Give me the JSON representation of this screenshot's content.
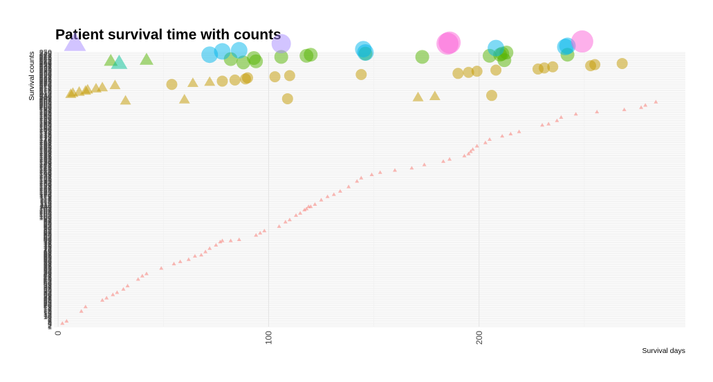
{
  "chart_data": {
    "type": "scatter",
    "title": "Patient survival time with counts",
    "xlabel": "Survival days",
    "ylabel": "Survival counts",
    "xlim": [
      -2,
      298
    ],
    "x_ticks": [
      0,
      100,
      200
    ],
    "y_axis": "categorical",
    "y_categories_count": 250,
    "grid": true,
    "legend": "none",
    "colors": {
      "g1": "#F8766D",
      "g2": "#C49A00",
      "g3": "#53B400",
      "g4": "#00C094",
      "g5": "#00B6EB",
      "g6": "#A58AFF",
      "g7": "#FB61D7"
    },
    "series": [
      {
        "group": "g1",
        "shape": "triangle",
        "size": 3,
        "points": [
          [
            2,
            4
          ],
          [
            4,
            6
          ],
          [
            11,
            15
          ],
          [
            13,
            19
          ],
          [
            21,
            25
          ],
          [
            23,
            27
          ],
          [
            26,
            30
          ],
          [
            28,
            32
          ],
          [
            31,
            35
          ],
          [
            33,
            38
          ],
          [
            38,
            44
          ],
          [
            40,
            47
          ],
          [
            42,
            49
          ],
          [
            49,
            54
          ],
          [
            55,
            58
          ],
          [
            58,
            60
          ],
          [
            62,
            62
          ],
          [
            65,
            65
          ],
          [
            68,
            66
          ],
          [
            70,
            69
          ],
          [
            72,
            72
          ],
          [
            75,
            75
          ],
          [
            77,
            78
          ],
          [
            78,
            79
          ],
          [
            82,
            79
          ],
          [
            86,
            80
          ],
          [
            94,
            84
          ],
          [
            96,
            86
          ],
          [
            98,
            88
          ],
          [
            105,
            92
          ],
          [
            108,
            96
          ],
          [
            110,
            98
          ],
          [
            113,
            102
          ],
          [
            115,
            104
          ],
          [
            117,
            107
          ],
          [
            118,
            108
          ],
          [
            119,
            110
          ],
          [
            120,
            110
          ],
          [
            122,
            112
          ],
          [
            125,
            116
          ],
          [
            128,
            119
          ],
          [
            131,
            121
          ],
          [
            134,
            124
          ],
          [
            138,
            128
          ],
          [
            142,
            133
          ],
          [
            144,
            136
          ],
          [
            149,
            139
          ],
          [
            153,
            141
          ],
          [
            160,
            143
          ],
          [
            168,
            145
          ],
          [
            174,
            148
          ],
          [
            183,
            151
          ],
          [
            186,
            153
          ],
          [
            193,
            156
          ],
          [
            195,
            158
          ],
          [
            196,
            160
          ],
          [
            197,
            162
          ],
          [
            199,
            165
          ],
          [
            203,
            168
          ],
          [
            205,
            171
          ],
          [
            211,
            174
          ],
          [
            215,
            176
          ],
          [
            219,
            178
          ],
          [
            230,
            184
          ],
          [
            233,
            185
          ],
          [
            237,
            188
          ],
          [
            239,
            191
          ],
          [
            246,
            194
          ],
          [
            256,
            196
          ],
          [
            269,
            198
          ],
          [
            277,
            200
          ],
          [
            279,
            202
          ],
          [
            284,
            205
          ]
        ]
      },
      {
        "group": "g2",
        "shape": "triangle",
        "size": 8,
        "points": [
          [
            6,
            212
          ],
          [
            7,
            213
          ],
          [
            10,
            214
          ],
          [
            13,
            215
          ],
          [
            14,
            216
          ],
          [
            18,
            217
          ],
          [
            21,
            218
          ],
          [
            27,
            220
          ],
          [
            32,
            206
          ],
          [
            60,
            207
          ],
          [
            64,
            222
          ],
          [
            72,
            223
          ],
          [
            171,
            209
          ],
          [
            179,
            210
          ]
        ]
      },
      {
        "group": "g2",
        "shape": "circle",
        "size": 8,
        "points": [
          [
            54,
            221
          ],
          [
            78,
            224
          ],
          [
            84,
            225
          ],
          [
            89,
            226
          ],
          [
            90,
            227
          ],
          [
            103,
            228
          ],
          [
            110,
            229
          ],
          [
            144,
            230
          ],
          [
            109,
            208
          ],
          [
            206,
            211
          ],
          [
            190,
            231
          ],
          [
            195,
            232
          ],
          [
            199,
            233
          ],
          [
            208,
            234
          ],
          [
            228,
            235
          ],
          [
            231,
            236
          ],
          [
            235,
            237
          ],
          [
            253,
            238
          ],
          [
            255,
            239
          ],
          [
            268,
            240
          ]
        ]
      },
      {
        "group": "g3",
        "shape": "triangle",
        "size": 10,
        "points": [
          [
            25,
            242
          ],
          [
            42,
            243
          ]
        ]
      },
      {
        "group": "g3",
        "shape": "circle",
        "size": 10,
        "points": [
          [
            82,
            244
          ],
          [
            88,
            241
          ],
          [
            93,
            245
          ],
          [
            94,
            242
          ],
          [
            106,
            246
          ],
          [
            118,
            247
          ],
          [
            120,
            248
          ],
          [
            146,
            249
          ],
          [
            173,
            246
          ],
          [
            205,
            247
          ],
          [
            210,
            248
          ],
          [
            211,
            249
          ],
          [
            212,
            243
          ],
          [
            242,
            248
          ],
          [
            213,
            250
          ]
        ]
      },
      {
        "group": "g4",
        "shape": "triangle",
        "size": 12,
        "points": [
          [
            29,
            240
          ]
        ]
      },
      {
        "group": "g5",
        "shape": "circle",
        "size": 12,
        "points": [
          [
            72,
            248
          ],
          [
            78,
            251
          ],
          [
            86,
            252
          ],
          [
            145,
            253
          ],
          [
            146,
            250
          ],
          [
            208,
            254
          ],
          [
            241,
            255
          ],
          [
            242,
            256
          ]
        ]
      },
      {
        "group": "g6",
        "shape": "triangle",
        "size": 16,
        "points": [
          [
            8,
            258
          ]
        ]
      },
      {
        "group": "g6",
        "shape": "circle",
        "size": 14,
        "points": [
          [
            106,
            258
          ]
        ]
      },
      {
        "group": "g7",
        "shape": "circle",
        "size": 16,
        "points": [
          [
            185,
            258
          ],
          [
            186,
            259
          ],
          [
            249,
            260
          ]
        ]
      }
    ]
  }
}
